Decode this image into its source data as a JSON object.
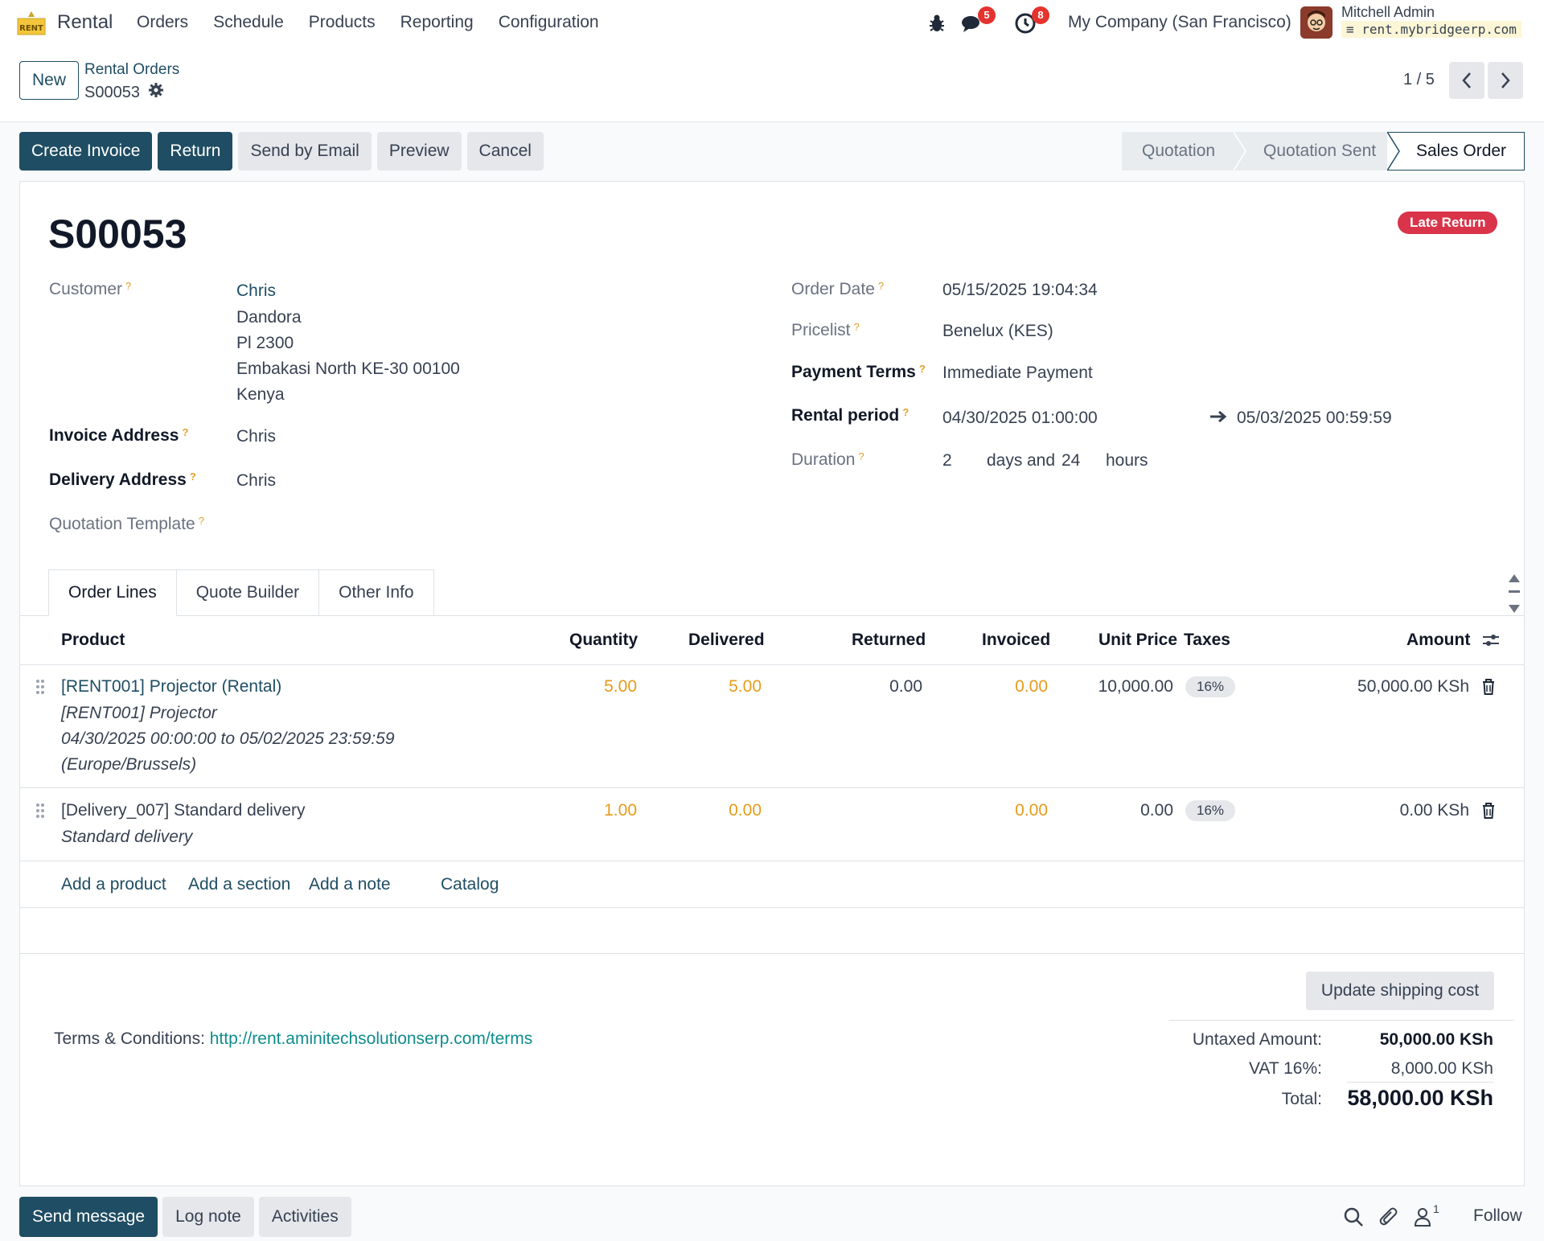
{
  "navbar": {
    "app_name": "Rental",
    "logo_text": "RENT",
    "menu": [
      "Orders",
      "Schedule",
      "Products",
      "Reporting",
      "Configuration"
    ],
    "messages_count": "5",
    "activities_count": "8",
    "company": "My Company (San Francisco)",
    "user_name": "Mitchell Admin",
    "database": "rent.mybridgeerp.com"
  },
  "control": {
    "new_label": "New",
    "breadcrumb_parent": "Rental Orders",
    "breadcrumb_current": "S00053",
    "pager": "1 / 5"
  },
  "actions": {
    "create_invoice": "Create Invoice",
    "return": "Return",
    "send_email": "Send by Email",
    "preview": "Preview",
    "cancel": "Cancel"
  },
  "status_bar": {
    "stages": [
      "Quotation",
      "Quotation Sent",
      "Sales Order"
    ],
    "current": "Sales Order"
  },
  "form": {
    "name": "S00053",
    "badge": "Late Return",
    "customer_label": "Customer",
    "customer_name": "Chris",
    "customer_address": [
      "Dandora",
      "Pl 2300",
      "Embakasi North KE-30 00100",
      "Kenya"
    ],
    "invoice_address_label": "Invoice Address",
    "invoice_address": "Chris",
    "delivery_address_label": "Delivery Address",
    "delivery_address": "Chris",
    "quotation_template_label": "Quotation Template",
    "order_date_label": "Order Date",
    "order_date": "05/15/2025 19:04:34",
    "pricelist_label": "Pricelist",
    "pricelist": "Benelux (KES)",
    "payment_terms_label": "Payment Terms",
    "payment_terms": "Immediate Payment",
    "rental_period_label": "Rental period",
    "rental_start": "04/30/2025 01:00:00",
    "rental_end": "05/03/2025 00:59:59",
    "duration_label": "Duration",
    "duration_days": "2",
    "duration_days_unit": "days",
    "duration_and": "and",
    "duration_hours": "24",
    "duration_hours_unit": "hours"
  },
  "tabs": [
    "Order Lines",
    "Quote Builder",
    "Other Info"
  ],
  "table": {
    "headers": {
      "product": "Product",
      "quantity": "Quantity",
      "delivered": "Delivered",
      "returned": "Returned",
      "invoiced": "Invoiced",
      "unit_price": "Unit Price",
      "taxes": "Taxes",
      "amount": "Amount"
    },
    "rows": [
      {
        "product": "[RENT001] Projector (Rental)",
        "description": [
          "[RENT001] Projector",
          "04/30/2025 00:00:00 to 05/02/2025 23:59:59",
          "(Europe/Brussels)"
        ],
        "quantity": "5.00",
        "delivered": "5.00",
        "returned": "0.00",
        "invoiced": "0.00",
        "unit_price": "10,000.00",
        "tax": "16%",
        "amount": "50,000.00 KSh"
      },
      {
        "product": "[Delivery_007] Standard delivery",
        "description": [
          "Standard delivery"
        ],
        "quantity": "1.00",
        "delivered": "0.00",
        "returned": "",
        "invoiced": "0.00",
        "unit_price": "0.00",
        "tax": "16%",
        "amount": "0.00 KSh"
      }
    ],
    "add_links": {
      "product": "Add a product",
      "section": "Add a section",
      "note": "Add a note",
      "catalog": "Catalog"
    }
  },
  "footer": {
    "update_shipping": "Update shipping cost",
    "terms_label": "Terms & Conditions:",
    "terms_url": "http://rent.aminitechsolutionserp.com/terms",
    "untaxed_label": "Untaxed Amount:",
    "untaxed_value": "50,000.00 KSh",
    "vat_label": "VAT 16%:",
    "vat_value": "8,000.00 KSh",
    "total_label": "Total:",
    "total_value": "58,000.00 KSh"
  },
  "chatter": {
    "send_message": "Send message",
    "log_note": "Log note",
    "activities": "Activities",
    "followers_count": "1",
    "follow": "Follow"
  }
}
